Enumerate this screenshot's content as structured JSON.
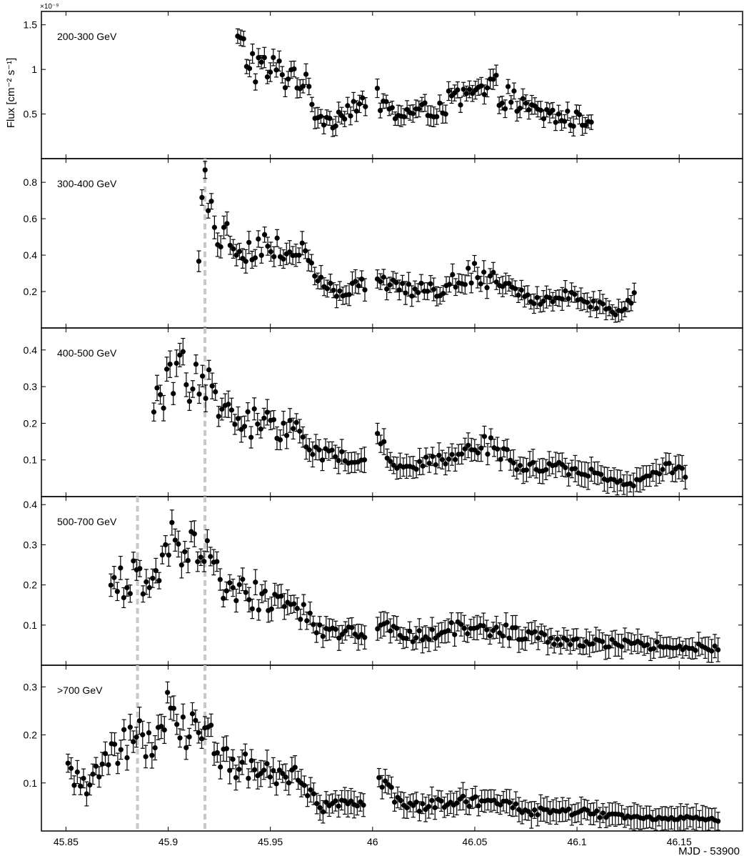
{
  "chart_data": {
    "type": "scatter",
    "ylabel": "Flux [cm⁻² s⁻¹]",
    "ylabel_exponent": "×10⁻⁹",
    "xlabel": "MJD - 53900",
    "xlim": [
      45.838,
      46.181
    ],
    "x_ticks": [
      45.85,
      45.9,
      45.95,
      46,
      46.05,
      46.1,
      46.15
    ],
    "x_tick_labels": [
      "45.85",
      "45.9",
      "45.95",
      "46",
      "46.05",
      "46.1",
      "46.15"
    ],
    "vlines_color": "#c8c8c8",
    "panels": [
      {
        "label": "200-300 GeV",
        "ylim": [
          0.0,
          1.65
        ],
        "y_ticks": [
          0.5,
          1.0,
          1.5
        ],
        "y_tick_labels": [
          "0.5",
          "1",
          "1.5"
        ],
        "vlines": [],
        "series": {
          "x_start": 45.934,
          "x_end": 46.107,
          "gap": [
            45.997,
            46.002
          ],
          "n": 120,
          "nodes": [
            [
              45.934,
              1.26
            ],
            [
              45.945,
              1.0
            ],
            [
              45.965,
              0.93
            ],
            [
              45.972,
              0.52
            ],
            [
              45.98,
              0.42
            ],
            [
              45.99,
              0.6
            ],
            [
              45.997,
              0.55
            ],
            [
              46.002,
              0.7
            ],
            [
              46.01,
              0.5
            ],
            [
              46.025,
              0.52
            ],
            [
              46.04,
              0.65
            ],
            [
              46.06,
              0.78
            ],
            [
              46.075,
              0.55
            ],
            [
              46.095,
              0.45
            ],
            [
              46.107,
              0.42
            ]
          ],
          "err": 0.09
        }
      },
      {
        "label": "300-400 GeV",
        "ylim": [
          0.0,
          0.93
        ],
        "y_ticks": [
          0.2,
          0.4,
          0.6,
          0.8
        ],
        "y_tick_labels": [
          "0.2",
          "0.4",
          "0.6",
          "0.8"
        ],
        "vlines": [
          45.918
        ],
        "series": {
          "x_start": 45.915,
          "x_end": 46.128,
          "gap": [
            45.997,
            46.002
          ],
          "n": 140,
          "nodes": [
            [
              45.915,
              0.46
            ],
            [
              45.918,
              0.82
            ],
            [
              45.925,
              0.52
            ],
            [
              45.94,
              0.45
            ],
            [
              45.955,
              0.42
            ],
            [
              45.965,
              0.45
            ],
            [
              45.972,
              0.26
            ],
            [
              45.985,
              0.18
            ],
            [
              45.997,
              0.25
            ],
            [
              46.002,
              0.3
            ],
            [
              46.015,
              0.22
            ],
            [
              46.03,
              0.2
            ],
            [
              46.05,
              0.3
            ],
            [
              46.065,
              0.25
            ],
            [
              46.08,
              0.15
            ],
            [
              46.1,
              0.18
            ],
            [
              46.118,
              0.08
            ],
            [
              46.128,
              0.16
            ]
          ],
          "err": 0.05
        }
      },
      {
        "label": "400-500 GeV",
        "ylim": [
          0.0,
          0.46
        ],
        "y_ticks": [
          0.1,
          0.2,
          0.3,
          0.4
        ],
        "y_tick_labels": [
          "0.1",
          "0.2",
          "0.3",
          "0.4"
        ],
        "vlines": [
          45.918
        ],
        "series": {
          "x_start": 45.893,
          "x_end": 46.153,
          "gap": [
            45.997,
            46.002
          ],
          "n": 165,
          "nodes": [
            [
              45.893,
              0.25
            ],
            [
              45.905,
              0.36
            ],
            [
              45.915,
              0.3
            ],
            [
              45.918,
              0.33
            ],
            [
              45.925,
              0.22
            ],
            [
              45.945,
              0.2
            ],
            [
              45.965,
              0.19
            ],
            [
              45.975,
              0.11
            ],
            [
              45.997,
              0.1
            ],
            [
              46.002,
              0.15
            ],
            [
              46.015,
              0.08
            ],
            [
              46.035,
              0.1
            ],
            [
              46.055,
              0.15
            ],
            [
              46.07,
              0.09
            ],
            [
              46.09,
              0.08
            ],
            [
              46.11,
              0.06
            ],
            [
              46.125,
              0.03
            ],
            [
              46.145,
              0.08
            ],
            [
              46.153,
              0.06
            ]
          ],
          "err": 0.028
        }
      },
      {
        "label": "500-700 GeV",
        "ylim": [
          0.0,
          0.42
        ],
        "y_ticks": [
          0.1,
          0.2,
          0.3,
          0.4
        ],
        "y_tick_labels": [
          "0.1",
          "0.2",
          "0.3",
          "0.4"
        ],
        "vlines": [
          45.885,
          45.918
        ],
        "series": {
          "x_start": 45.872,
          "x_end": 46.169,
          "gap": [
            45.997,
            46.002
          ],
          "n": 190,
          "nodes": [
            [
              45.872,
              0.19
            ],
            [
              45.885,
              0.22
            ],
            [
              45.89,
              0.18
            ],
            [
              45.9,
              0.3
            ],
            [
              45.91,
              0.3
            ],
            [
              45.918,
              0.3
            ],
            [
              45.925,
              0.2
            ],
            [
              45.95,
              0.16
            ],
            [
              45.965,
              0.14
            ],
            [
              45.975,
              0.08
            ],
            [
              45.997,
              0.08
            ],
            [
              46.002,
              0.1
            ],
            [
              46.02,
              0.07
            ],
            [
              46.04,
              0.09
            ],
            [
              46.06,
              0.09
            ],
            [
              46.08,
              0.07
            ],
            [
              46.1,
              0.06
            ],
            [
              46.13,
              0.05
            ],
            [
              46.15,
              0.05
            ],
            [
              46.169,
              0.04
            ]
          ],
          "err": 0.025
        }
      },
      {
        "label": ">700 GeV",
        "ylim": [
          0.0,
          0.345
        ],
        "y_ticks": [
          0.1,
          0.2,
          0.3
        ],
        "y_tick_labels": [
          "0.1",
          "0.2",
          "0.3"
        ],
        "vlines": [
          45.885,
          45.918
        ],
        "series": {
          "x_start": 45.851,
          "x_end": 46.169,
          "gap": [
            45.997,
            46.002
          ],
          "n": 210,
          "nodes": [
            [
              45.851,
              0.12
            ],
            [
              45.86,
              0.09
            ],
            [
              45.87,
              0.15
            ],
            [
              45.885,
              0.21
            ],
            [
              45.89,
              0.17
            ],
            [
              45.9,
              0.25
            ],
            [
              45.91,
              0.21
            ],
            [
              45.918,
              0.22
            ],
            [
              45.925,
              0.15
            ],
            [
              45.95,
              0.12
            ],
            [
              45.965,
              0.11
            ],
            [
              45.975,
              0.05
            ],
            [
              45.997,
              0.06
            ],
            [
              46.002,
              0.1
            ],
            [
              46.02,
              0.05
            ],
            [
              46.04,
              0.06
            ],
            [
              46.06,
              0.06
            ],
            [
              46.08,
              0.04
            ],
            [
              46.1,
              0.04
            ],
            [
              46.13,
              0.025
            ],
            [
              46.15,
              0.025
            ],
            [
              46.169,
              0.025
            ]
          ],
          "err": 0.022
        }
      }
    ]
  }
}
